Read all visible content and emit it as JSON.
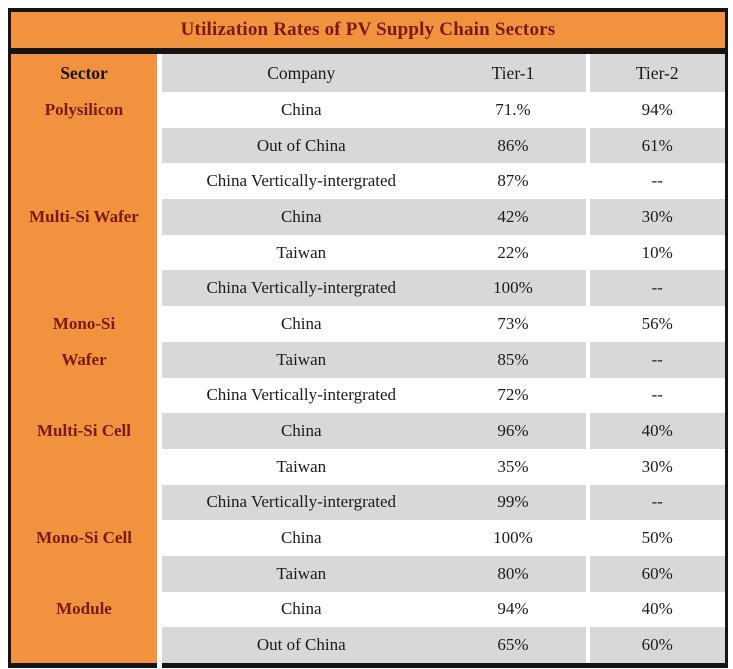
{
  "colors": {
    "orange": "#F2913E",
    "maroon_text": "#7B1A0E",
    "row_gray": "#D8D8D8",
    "row_white": "#FFFFFF",
    "border_black": "#141414"
  },
  "chart_data": {
    "type": "table",
    "title": "Utilization Rates of PV Supply Chain Sectors",
    "columns": [
      "Sector",
      "Company",
      "Tier-1",
      "Tier-2"
    ],
    "rows": [
      [
        "Polysilicon",
        "China",
        "71.%",
        "94%"
      ],
      [
        "",
        "Out of China",
        "86%",
        "61%"
      ],
      [
        "",
        "China Vertically-intergrated",
        "87%",
        "--"
      ],
      [
        "Multi-Si Wafer",
        "China",
        "42%",
        "30%"
      ],
      [
        "",
        "Taiwan",
        "22%",
        "10%"
      ],
      [
        "",
        "China Vertically-intergrated",
        "100%",
        "--"
      ],
      [
        "Mono-Si",
        "China",
        "73%",
        "56%"
      ],
      [
        "Wafer",
        "Taiwan",
        "85%",
        "--"
      ],
      [
        "",
        "China Vertically-intergrated",
        "72%",
        "--"
      ],
      [
        "Multi-Si Cell",
        "China",
        "96%",
        "40%"
      ],
      [
        "",
        "Taiwan",
        "35%",
        "30%"
      ],
      [
        "",
        "China Vertically-intergrated",
        "99%",
        "--"
      ],
      [
        "Mono-Si Cell",
        "China",
        "100%",
        "50%"
      ],
      [
        "",
        "Taiwan",
        "80%",
        "60%"
      ],
      [
        "Module",
        "China",
        "94%",
        "40%"
      ],
      [
        "",
        "Out of China",
        "65%",
        "60%"
      ]
    ]
  }
}
